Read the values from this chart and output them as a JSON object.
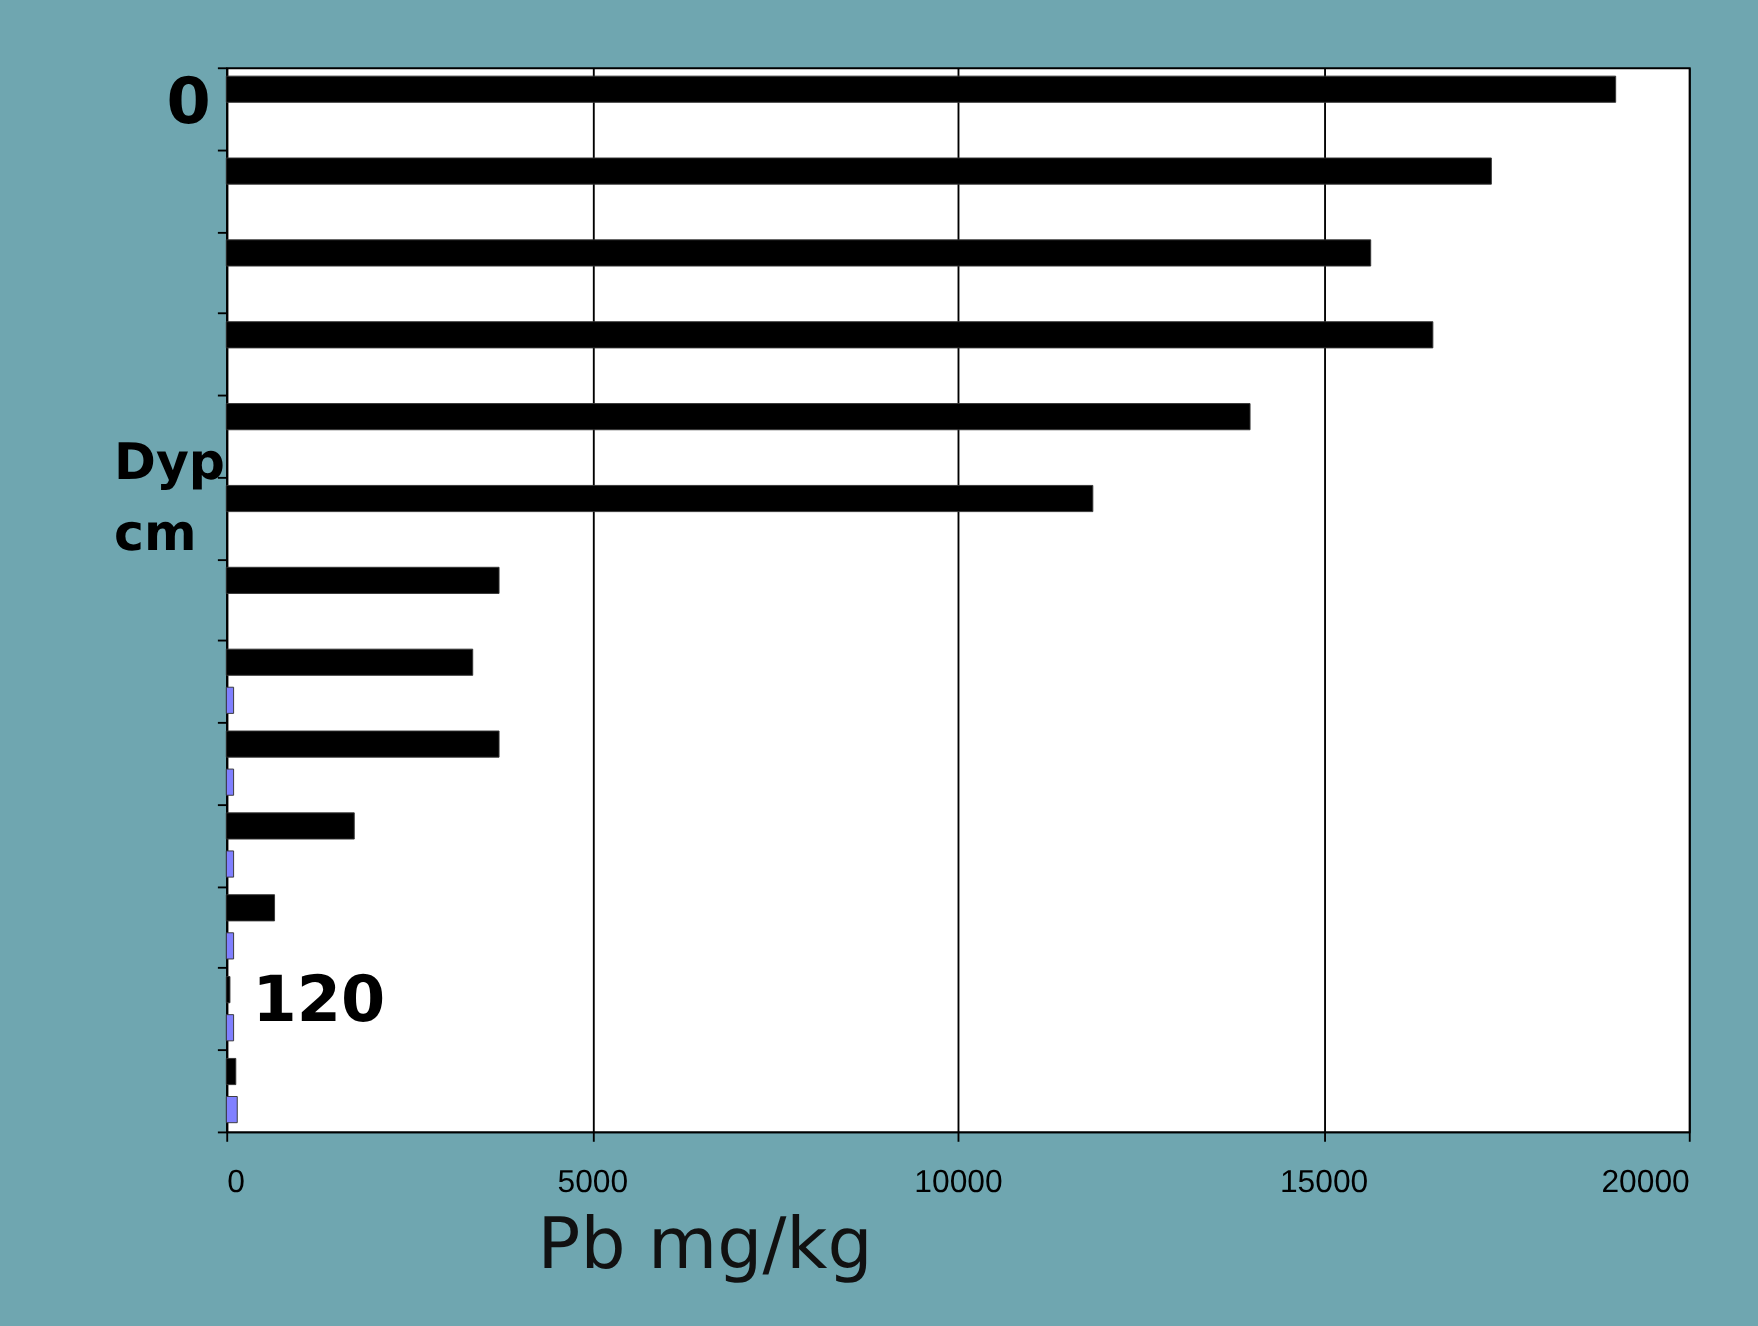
{
  "chart_data": {
    "type": "bar",
    "orientation": "horizontal",
    "xlabel": "Pb mg/kg",
    "ylabel": "Dyp cm",
    "annotations": [
      "0",
      "120"
    ],
    "categories": [
      null,
      null,
      null,
      null,
      null,
      null,
      null,
      null,
      null,
      null,
      null,
      null,
      null
    ],
    "series": [
      {
        "color": "#000000",
        "values": [
          19000,
          17300,
          15650,
          16500,
          14000,
          11850,
          3730,
          3370,
          3730,
          1750,
          660,
          50,
          130
        ]
      },
      {
        "color": "#8080ff",
        "values": [
          null,
          null,
          null,
          null,
          null,
          null,
          null,
          100,
          100,
          100,
          100,
          100,
          150
        ]
      }
    ],
    "xlim": [
      0,
      20000
    ],
    "xticks": [
      0,
      5000,
      10000,
      15000,
      20000
    ],
    "grid": "x"
  }
}
